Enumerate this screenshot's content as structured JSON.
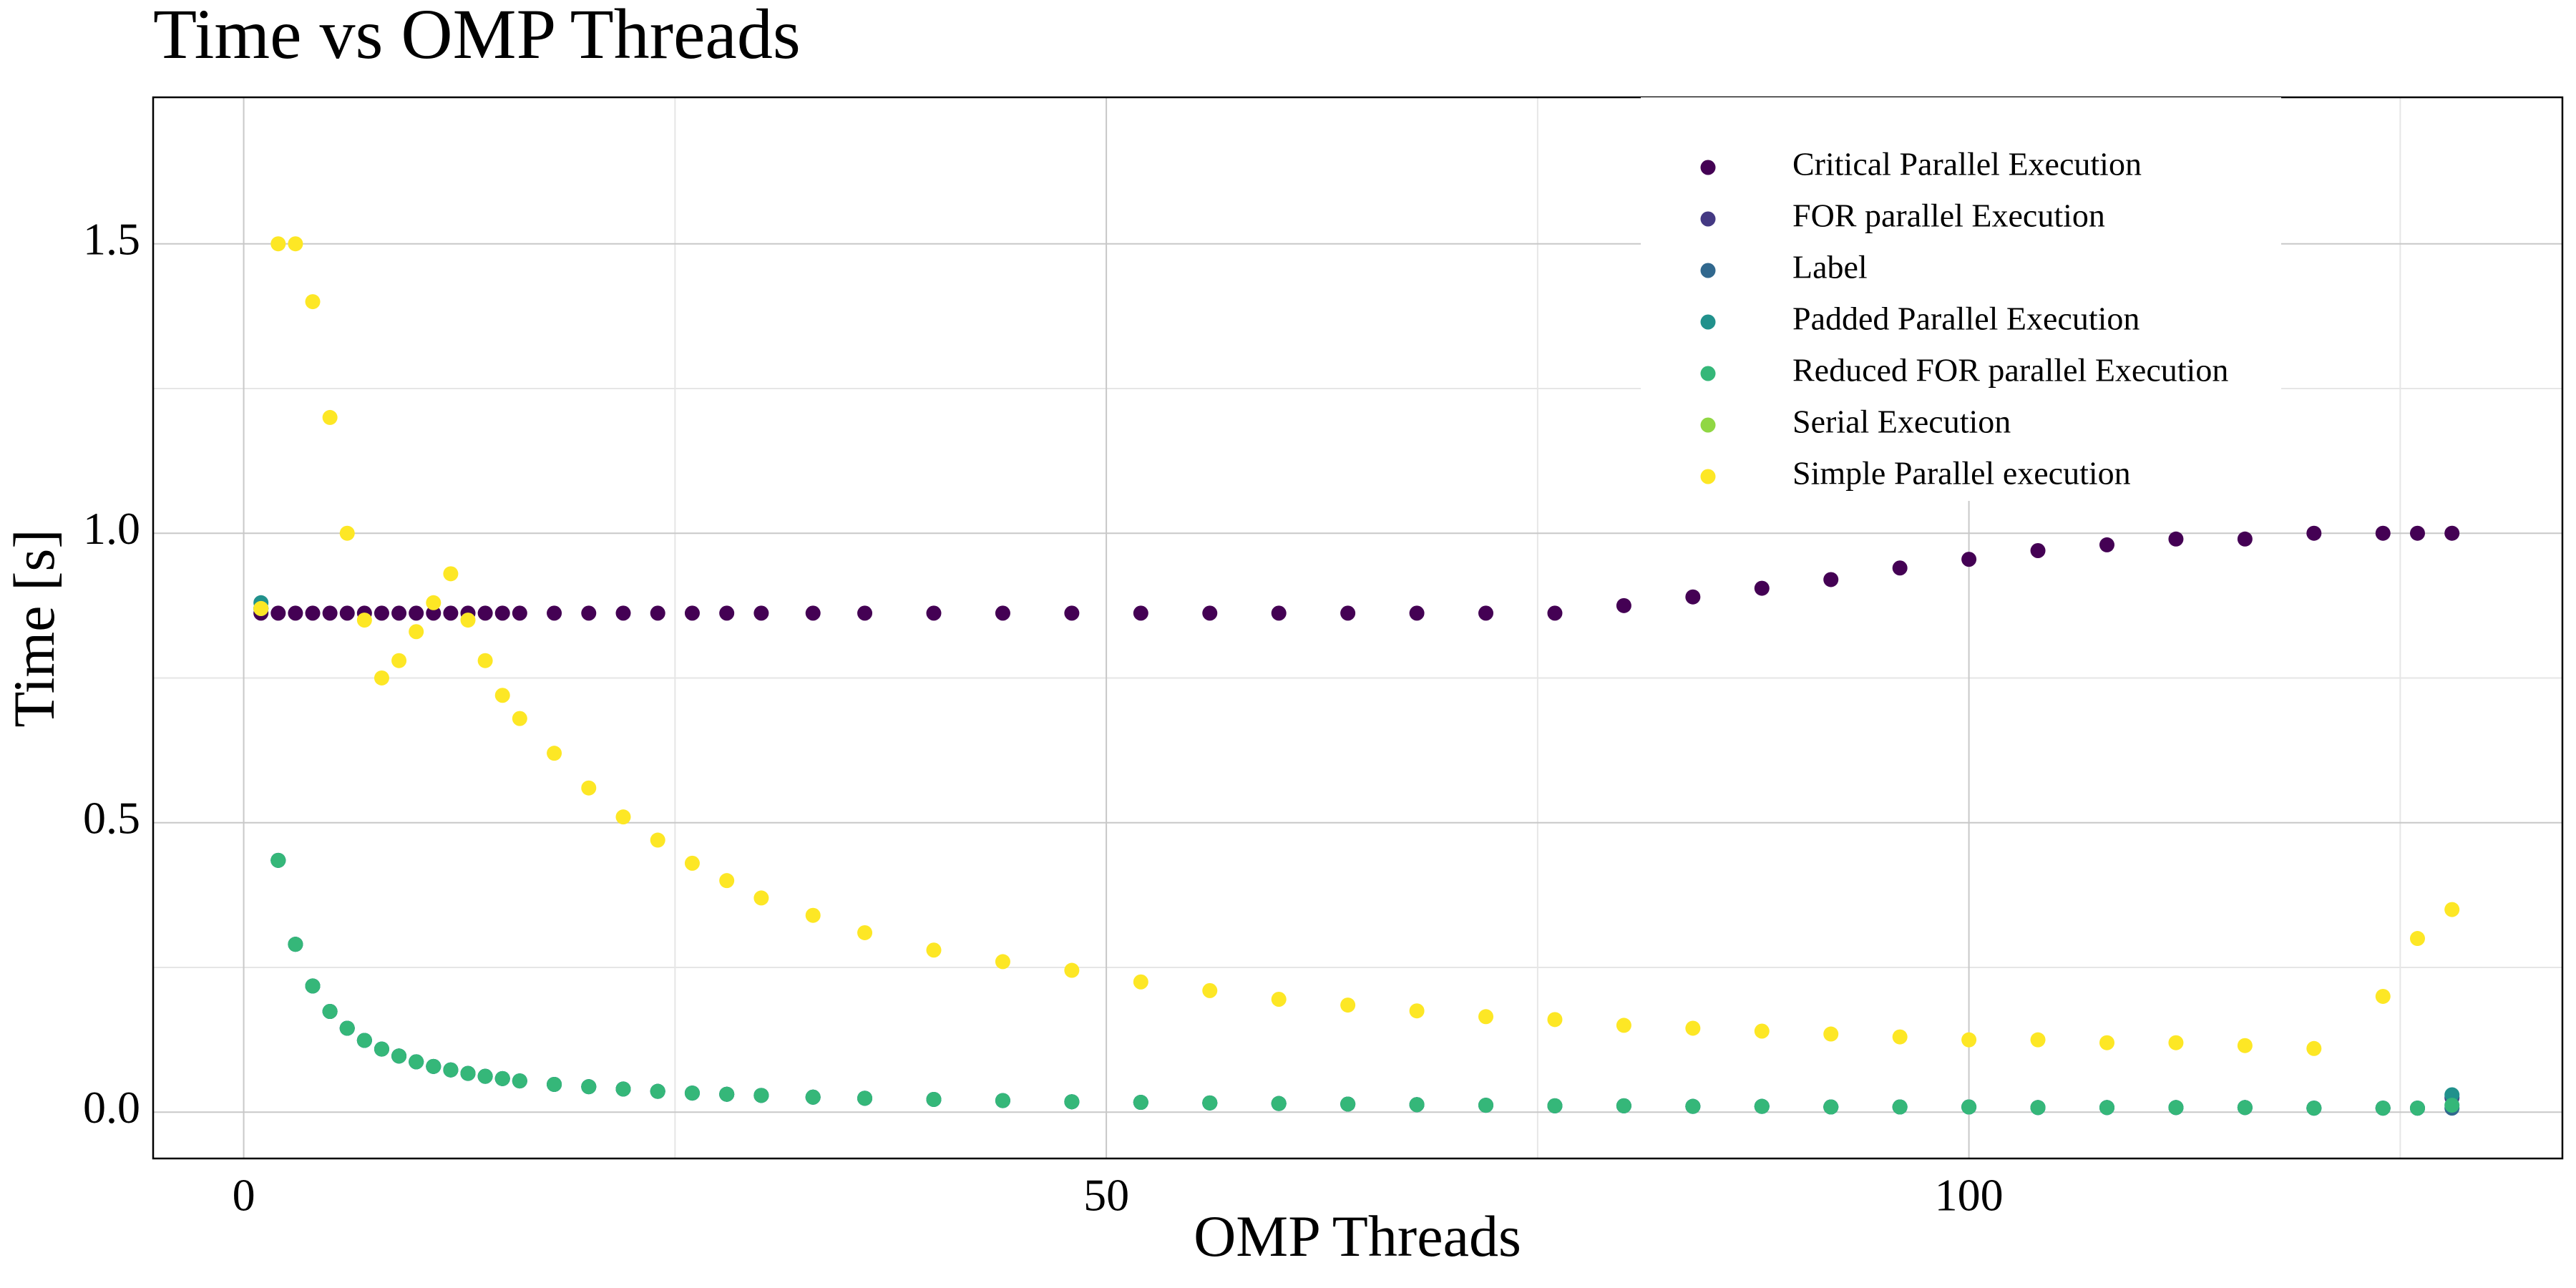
{
  "chart_data": {
    "type": "scatter",
    "title": "Time vs OMP Threads",
    "x_label": "OMP Threads",
    "y_label": "Time [s]",
    "xlim": [
      -5.25,
      134.4
    ],
    "ylim": [
      -0.08,
      1.753
    ],
    "xticks": [
      0,
      50,
      100
    ],
    "minor_xticks": [
      25,
      75,
      125
    ],
    "yticks": [
      {
        "value": 0,
        "label": "0.0"
      },
      0.5,
      {
        "value": 1,
        "label": "1.0"
      },
      1.5
    ],
    "minor_yticks": [
      0.25,
      0.75,
      1.25
    ],
    "grid": true,
    "legend": "upper right",
    "x": [
      1,
      2,
      3,
      4,
      5,
      6,
      7,
      8,
      9,
      10,
      11,
      12,
      13,
      14,
      15,
      16,
      18,
      20,
      22,
      24,
      26,
      28,
      30,
      33,
      36,
      40,
      44,
      48,
      52,
      56,
      60,
      64,
      68,
      72,
      76,
      80,
      84,
      88,
      92,
      96,
      100,
      104,
      108,
      112,
      116,
      120,
      124,
      126,
      128
    ],
    "series": [
      {
        "name": "Critical Parallel Execution",
        "color": "#440154",
        "values": [
          0.862,
          0.862,
          0.862,
          0.862,
          0.862,
          0.862,
          0.862,
          0.862,
          0.862,
          0.862,
          0.862,
          0.862,
          0.862,
          0.862,
          0.862,
          0.862,
          0.862,
          0.862,
          0.862,
          0.862,
          0.862,
          0.862,
          0.862,
          0.862,
          0.862,
          0.862,
          0.862,
          0.862,
          0.862,
          0.862,
          0.862,
          0.862,
          0.862,
          0.862,
          0.862,
          0.875,
          0.89,
          0.905,
          0.92,
          0.94,
          0.955,
          0.97,
          0.98,
          0.99,
          0.99,
          1.0,
          1.0,
          1.0,
          1.0
        ]
      },
      {
        "name": "FOR parallel Execution",
        "color": "#443983",
        "values": [
          0.87,
          0.435,
          0.29,
          0.218,
          0.174,
          0.145,
          0.124,
          0.109,
          0.097,
          0.087,
          0.079,
          0.073,
          0.067,
          0.062,
          0.058,
          0.054,
          0.048,
          0.044,
          0.04,
          0.036,
          0.033,
          0.031,
          0.029,
          0.026,
          0.024,
          0.022,
          0.02,
          0.018,
          0.017,
          0.016,
          0.015,
          0.014,
          0.013,
          0.012,
          0.011,
          0.011,
          0.01,
          0.01,
          0.009,
          0.009,
          0.009,
          0.008,
          0.008,
          0.008,
          0.008,
          0.007,
          0.007,
          0.007,
          0.025
        ]
      },
      {
        "name": "Label",
        "color": "#31688e",
        "values": [
          0.87,
          0.435,
          0.29,
          0.218,
          0.174,
          0.145,
          0.124,
          0.109,
          0.097,
          0.087,
          0.079,
          0.073,
          0.067,
          0.062,
          0.058,
          0.054,
          0.048,
          0.044,
          0.04,
          0.036,
          0.033,
          0.031,
          0.029,
          0.026,
          0.024,
          0.022,
          0.02,
          0.018,
          0.017,
          0.016,
          0.015,
          0.014,
          0.013,
          0.012,
          0.011,
          0.011,
          0.01,
          0.01,
          0.009,
          0.009,
          0.009,
          0.008,
          0.008,
          0.008,
          0.008,
          0.007,
          0.007,
          0.007,
          0.007
        ]
      },
      {
        "name": "Padded Parallel Execution",
        "color": "#21918c",
        "values": [
          0.88,
          0.435,
          0.29,
          0.218,
          0.174,
          0.145,
          0.124,
          0.109,
          0.097,
          0.087,
          0.079,
          0.073,
          0.067,
          0.062,
          0.058,
          0.054,
          0.048,
          0.044,
          0.04,
          0.036,
          0.033,
          0.031,
          0.029,
          0.026,
          0.024,
          0.022,
          0.02,
          0.018,
          0.017,
          0.016,
          0.015,
          0.014,
          0.013,
          0.012,
          0.011,
          0.011,
          0.01,
          0.01,
          0.009,
          0.009,
          0.009,
          0.008,
          0.008,
          0.008,
          0.008,
          0.007,
          0.007,
          0.007,
          0.03
        ]
      },
      {
        "name": "Reduced FOR parallel Execution",
        "color": "#35b779",
        "values": [
          0.87,
          0.435,
          0.29,
          0.218,
          0.174,
          0.145,
          0.124,
          0.109,
          0.097,
          0.087,
          0.079,
          0.073,
          0.067,
          0.062,
          0.058,
          0.054,
          0.048,
          0.044,
          0.04,
          0.036,
          0.033,
          0.031,
          0.029,
          0.026,
          0.024,
          0.022,
          0.02,
          0.018,
          0.017,
          0.016,
          0.015,
          0.014,
          0.013,
          0.012,
          0.011,
          0.011,
          0.01,
          0.01,
          0.009,
          0.009,
          0.009,
          0.008,
          0.008,
          0.008,
          0.008,
          0.007,
          0.007,
          0.007,
          0.012
        ]
      },
      {
        "name": "Serial Execution",
        "color": "#90d743",
        "values": [
          0.87,
          null,
          null,
          null,
          null,
          null,
          null,
          null,
          null,
          null,
          null,
          null,
          null,
          null,
          null,
          null,
          null,
          null,
          null,
          null,
          null,
          null,
          null,
          null,
          null,
          null,
          null,
          null,
          null,
          null,
          null,
          null,
          null,
          null,
          null,
          null,
          null,
          null,
          null,
          null,
          null,
          null,
          null,
          null,
          null,
          null,
          null,
          null,
          null
        ]
      },
      {
        "name": "Simple Parallel execution",
        "color": "#fde725",
        "values": [
          0.87,
          1.5,
          1.5,
          1.4,
          1.2,
          1.0,
          0.85,
          0.75,
          0.78,
          0.83,
          0.88,
          0.93,
          0.85,
          0.78,
          0.72,
          0.68,
          0.62,
          0.56,
          0.51,
          0.47,
          0.43,
          0.4,
          0.37,
          0.34,
          0.31,
          0.28,
          0.26,
          0.245,
          0.225,
          0.21,
          0.195,
          0.185,
          0.175,
          0.165,
          0.16,
          0.15,
          0.145,
          0.14,
          0.135,
          0.13,
          0.125,
          0.125,
          0.12,
          0.12,
          0.115,
          0.11,
          0.2,
          0.3,
          0.35
        ]
      }
    ]
  }
}
